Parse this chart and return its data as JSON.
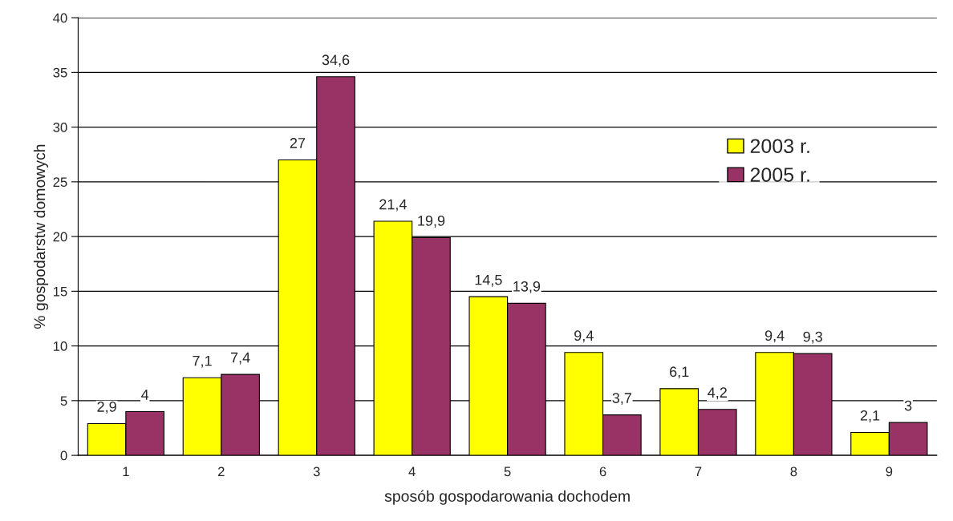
{
  "chart_data": {
    "type": "bar",
    "xlabel": "sposób gospodarowania dochodem",
    "ylabel": "% gospodarstw domowych",
    "categories": [
      "1",
      "2",
      "3",
      "4",
      "5",
      "6",
      "7",
      "8",
      "9"
    ],
    "series": [
      {
        "name": "2003 r.",
        "color": "#ffff00",
        "values": [
          2.9,
          7.1,
          27,
          21.4,
          14.5,
          9.4,
          6.1,
          9.4,
          2.1
        ],
        "value_labels": [
          "2,9",
          "7,1",
          "27",
          "21,4",
          "14,5",
          "9,4",
          "6,1",
          "9,4",
          "2,1"
        ]
      },
      {
        "name": "2005 r.",
        "color": "#993366",
        "values": [
          4,
          7.4,
          34.6,
          19.9,
          13.9,
          3.7,
          4.2,
          9.3,
          3
        ],
        "value_labels": [
          "4",
          "7,4",
          "34,6",
          "19,9",
          "13,9",
          "3,7",
          "4,2",
          "9,3",
          "3"
        ]
      }
    ],
    "ylim": [
      0,
      40
    ],
    "yticks": [
      0,
      5,
      10,
      15,
      20,
      25,
      30,
      35,
      40
    ],
    "grid": "y",
    "legend": "right"
  }
}
